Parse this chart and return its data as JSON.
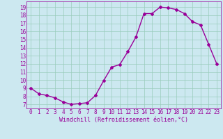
{
  "x": [
    0,
    1,
    2,
    3,
    4,
    5,
    6,
    7,
    8,
    9,
    10,
    11,
    12,
    13,
    14,
    15,
    16,
    17,
    18,
    19,
    20,
    21,
    22,
    23
  ],
  "y": [
    9,
    8.3,
    8.1,
    7.8,
    7.3,
    7.0,
    7.1,
    7.2,
    8.1,
    9.9,
    11.6,
    11.9,
    13.5,
    15.3,
    18.2,
    18.2,
    19.0,
    18.9,
    18.7,
    18.2,
    17.2,
    16.8,
    14.4,
    12.0
  ],
  "line_color": "#990099",
  "marker": "D",
  "marker_size": 2,
  "bg_color": "#cce8f0",
  "grid_color": "#99ccbb",
  "ylabel_vals": [
    7,
    8,
    9,
    10,
    11,
    12,
    13,
    14,
    15,
    16,
    17,
    18,
    19
  ],
  "xlabel_label": "Windchill (Refroidissement éolien,°C)",
  "xlim": [
    -0.5,
    23.5
  ],
  "ylim": [
    6.5,
    19.7
  ],
  "xlabel_color": "#990099",
  "tick_color": "#990099",
  "tick_fontsize": 5.5,
  "xlabel_fontsize": 6.0,
  "linewidth": 1.0
}
